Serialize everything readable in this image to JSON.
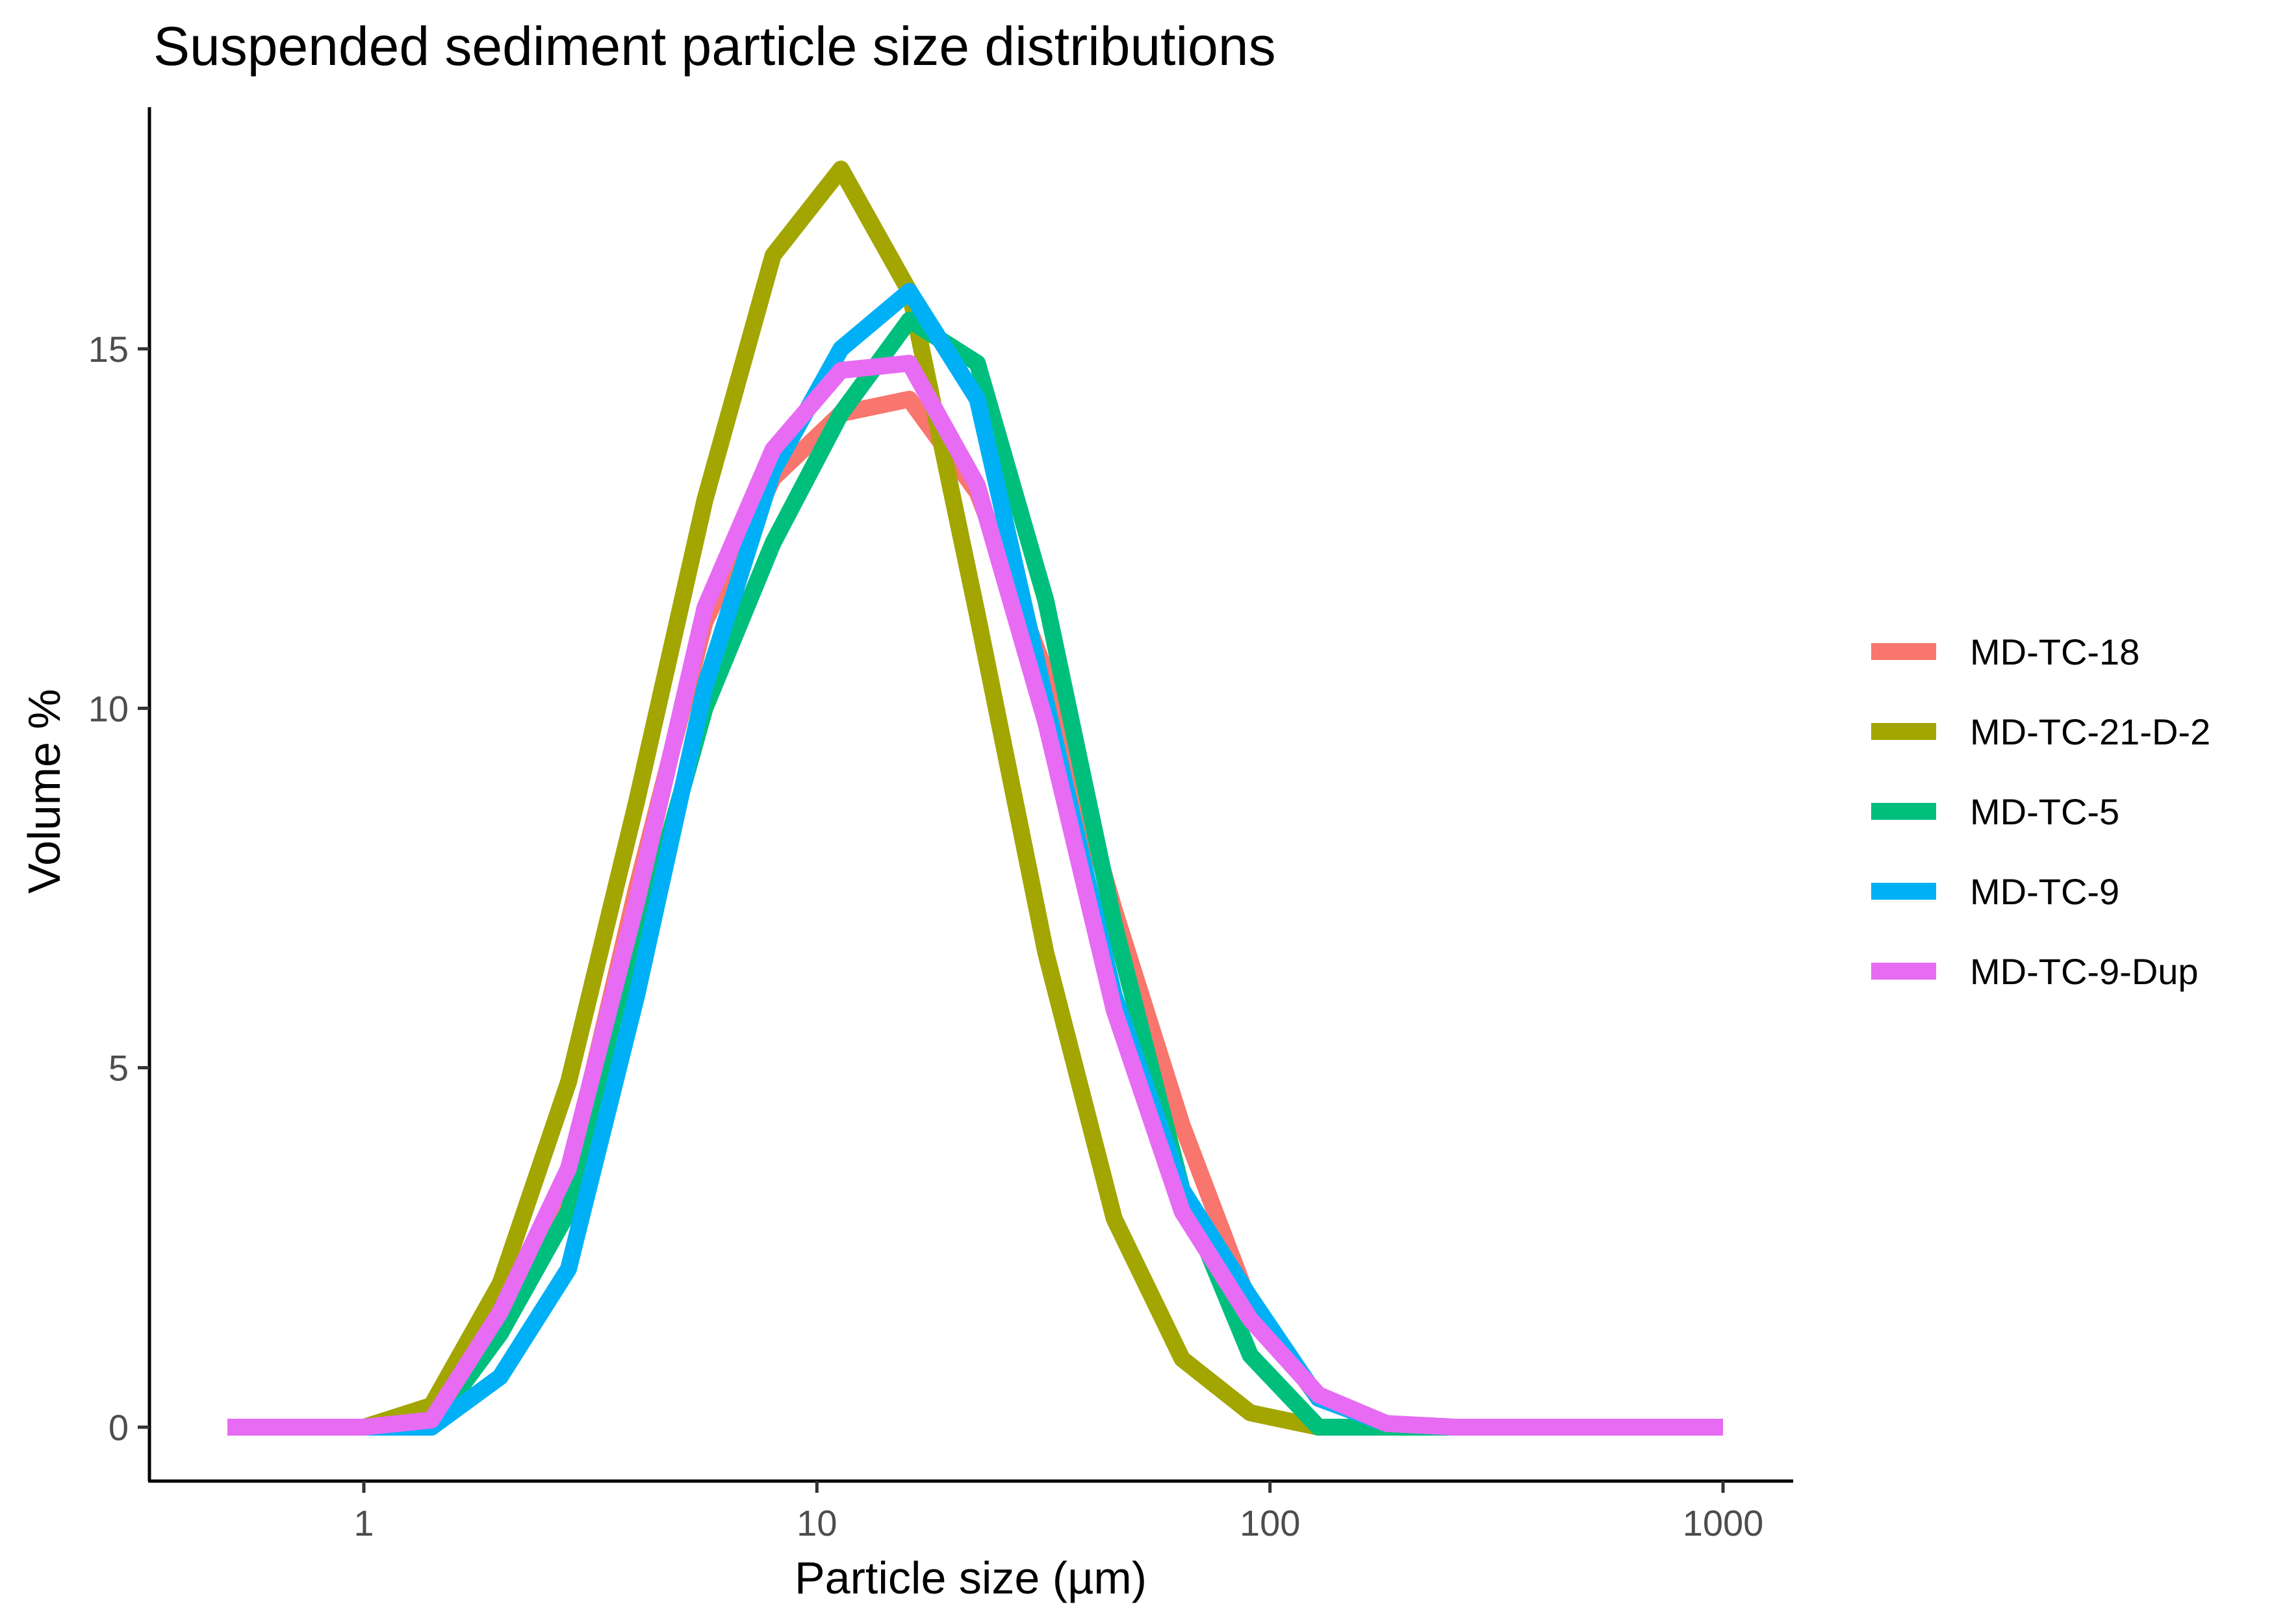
{
  "chart_data": {
    "type": "line",
    "title": "Suspended sediment particle size distributions",
    "xlabel": "Particle size (µm)",
    "ylabel": "Volume %",
    "x_scale": "log10",
    "xlim": [
      0.5,
      1000
    ],
    "ylim": [
      0,
      17.5
    ],
    "x_ticks": [
      1,
      10,
      100,
      1000
    ],
    "x_tick_labels": [
      "1",
      "10",
      "100",
      "1000"
    ],
    "y_ticks": [
      0,
      5,
      10,
      15
    ],
    "y_tick_labels": [
      "0",
      "5",
      "10",
      "15"
    ],
    "grid": false,
    "legend_position": "right",
    "x": [
      0.5,
      1,
      1.41,
      2,
      2.83,
      4,
      5.66,
      8,
      11.3,
      16,
      22.6,
      32,
      45.3,
      64,
      90.5,
      128,
      181,
      256,
      362,
      512,
      724,
      1000
    ],
    "series": [
      {
        "name": "MD-TC-18",
        "color": "#F8766D",
        "values": [
          0,
          0,
          0.1,
          1.5,
          3.5,
          7.5,
          11.2,
          13.2,
          14.1,
          14.3,
          13.0,
          10.5,
          7.2,
          4.2,
          1.7,
          0.4,
          0.05,
          0,
          0,
          0,
          0,
          0
        ]
      },
      {
        "name": "MD-TC-21-D-2",
        "color": "#A3A500",
        "values": [
          0,
          0,
          0.3,
          2.0,
          4.8,
          8.7,
          12.9,
          16.3,
          17.5,
          15.8,
          11.3,
          6.6,
          2.9,
          0.95,
          0.2,
          0,
          0,
          0,
          0,
          0,
          0,
          0
        ]
      },
      {
        "name": "MD-TC-5",
        "color": "#00BF7D",
        "values": [
          0,
          0,
          0,
          1.3,
          3.0,
          6.6,
          10.0,
          12.3,
          14.1,
          15.4,
          14.8,
          11.5,
          7.0,
          3.3,
          1.0,
          0,
          0,
          0,
          0,
          0,
          0,
          0
        ]
      },
      {
        "name": "MD-TC-9",
        "color": "#00B0F6",
        "values": [
          0,
          0,
          0,
          0.7,
          2.2,
          6.0,
          10.3,
          13.3,
          15.0,
          15.8,
          14.3,
          10.1,
          6.0,
          3.3,
          1.8,
          0.4,
          0.05,
          0,
          0,
          0,
          0,
          0
        ]
      },
      {
        "name": "MD-TC-9-Dup",
        "color": "#E76BF3",
        "values": [
          0,
          0,
          0.1,
          1.6,
          3.6,
          7.3,
          11.4,
          13.6,
          14.7,
          14.8,
          13.1,
          9.8,
          5.8,
          3.0,
          1.5,
          0.45,
          0.05,
          0,
          0,
          0,
          0,
          0
        ]
      }
    ]
  }
}
